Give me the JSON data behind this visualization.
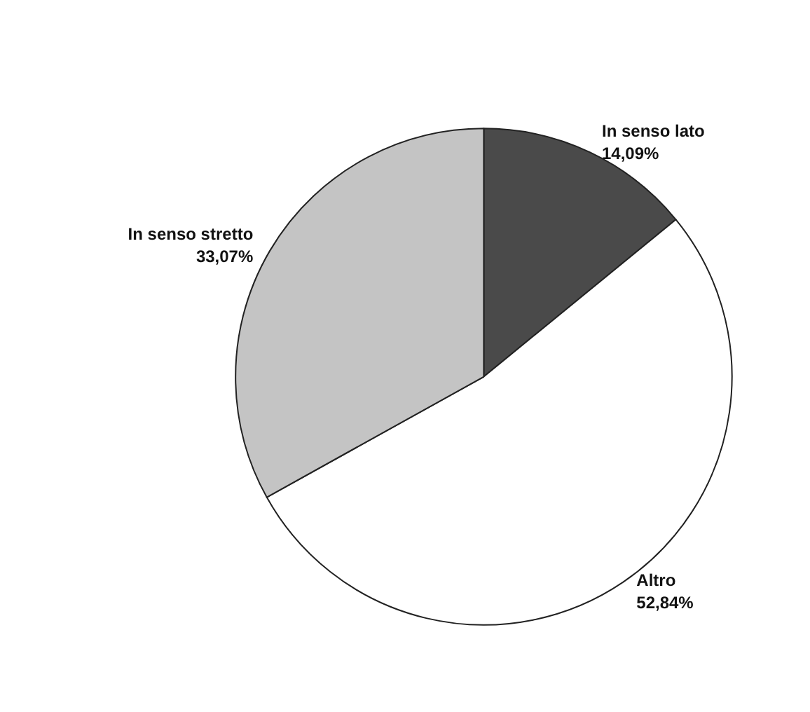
{
  "chart_data": {
    "type": "pie",
    "categories": [
      "In senso lato",
      "Altro",
      "In senso stretto"
    ],
    "values": [
      14.09,
      52.84,
      33.07
    ],
    "value_labels": [
      "14,09%",
      "52,84%",
      "33,07%"
    ],
    "colors": [
      "#4a4a4a",
      "#ffffff",
      "#c4c4c4"
    ],
    "legend": false
  }
}
